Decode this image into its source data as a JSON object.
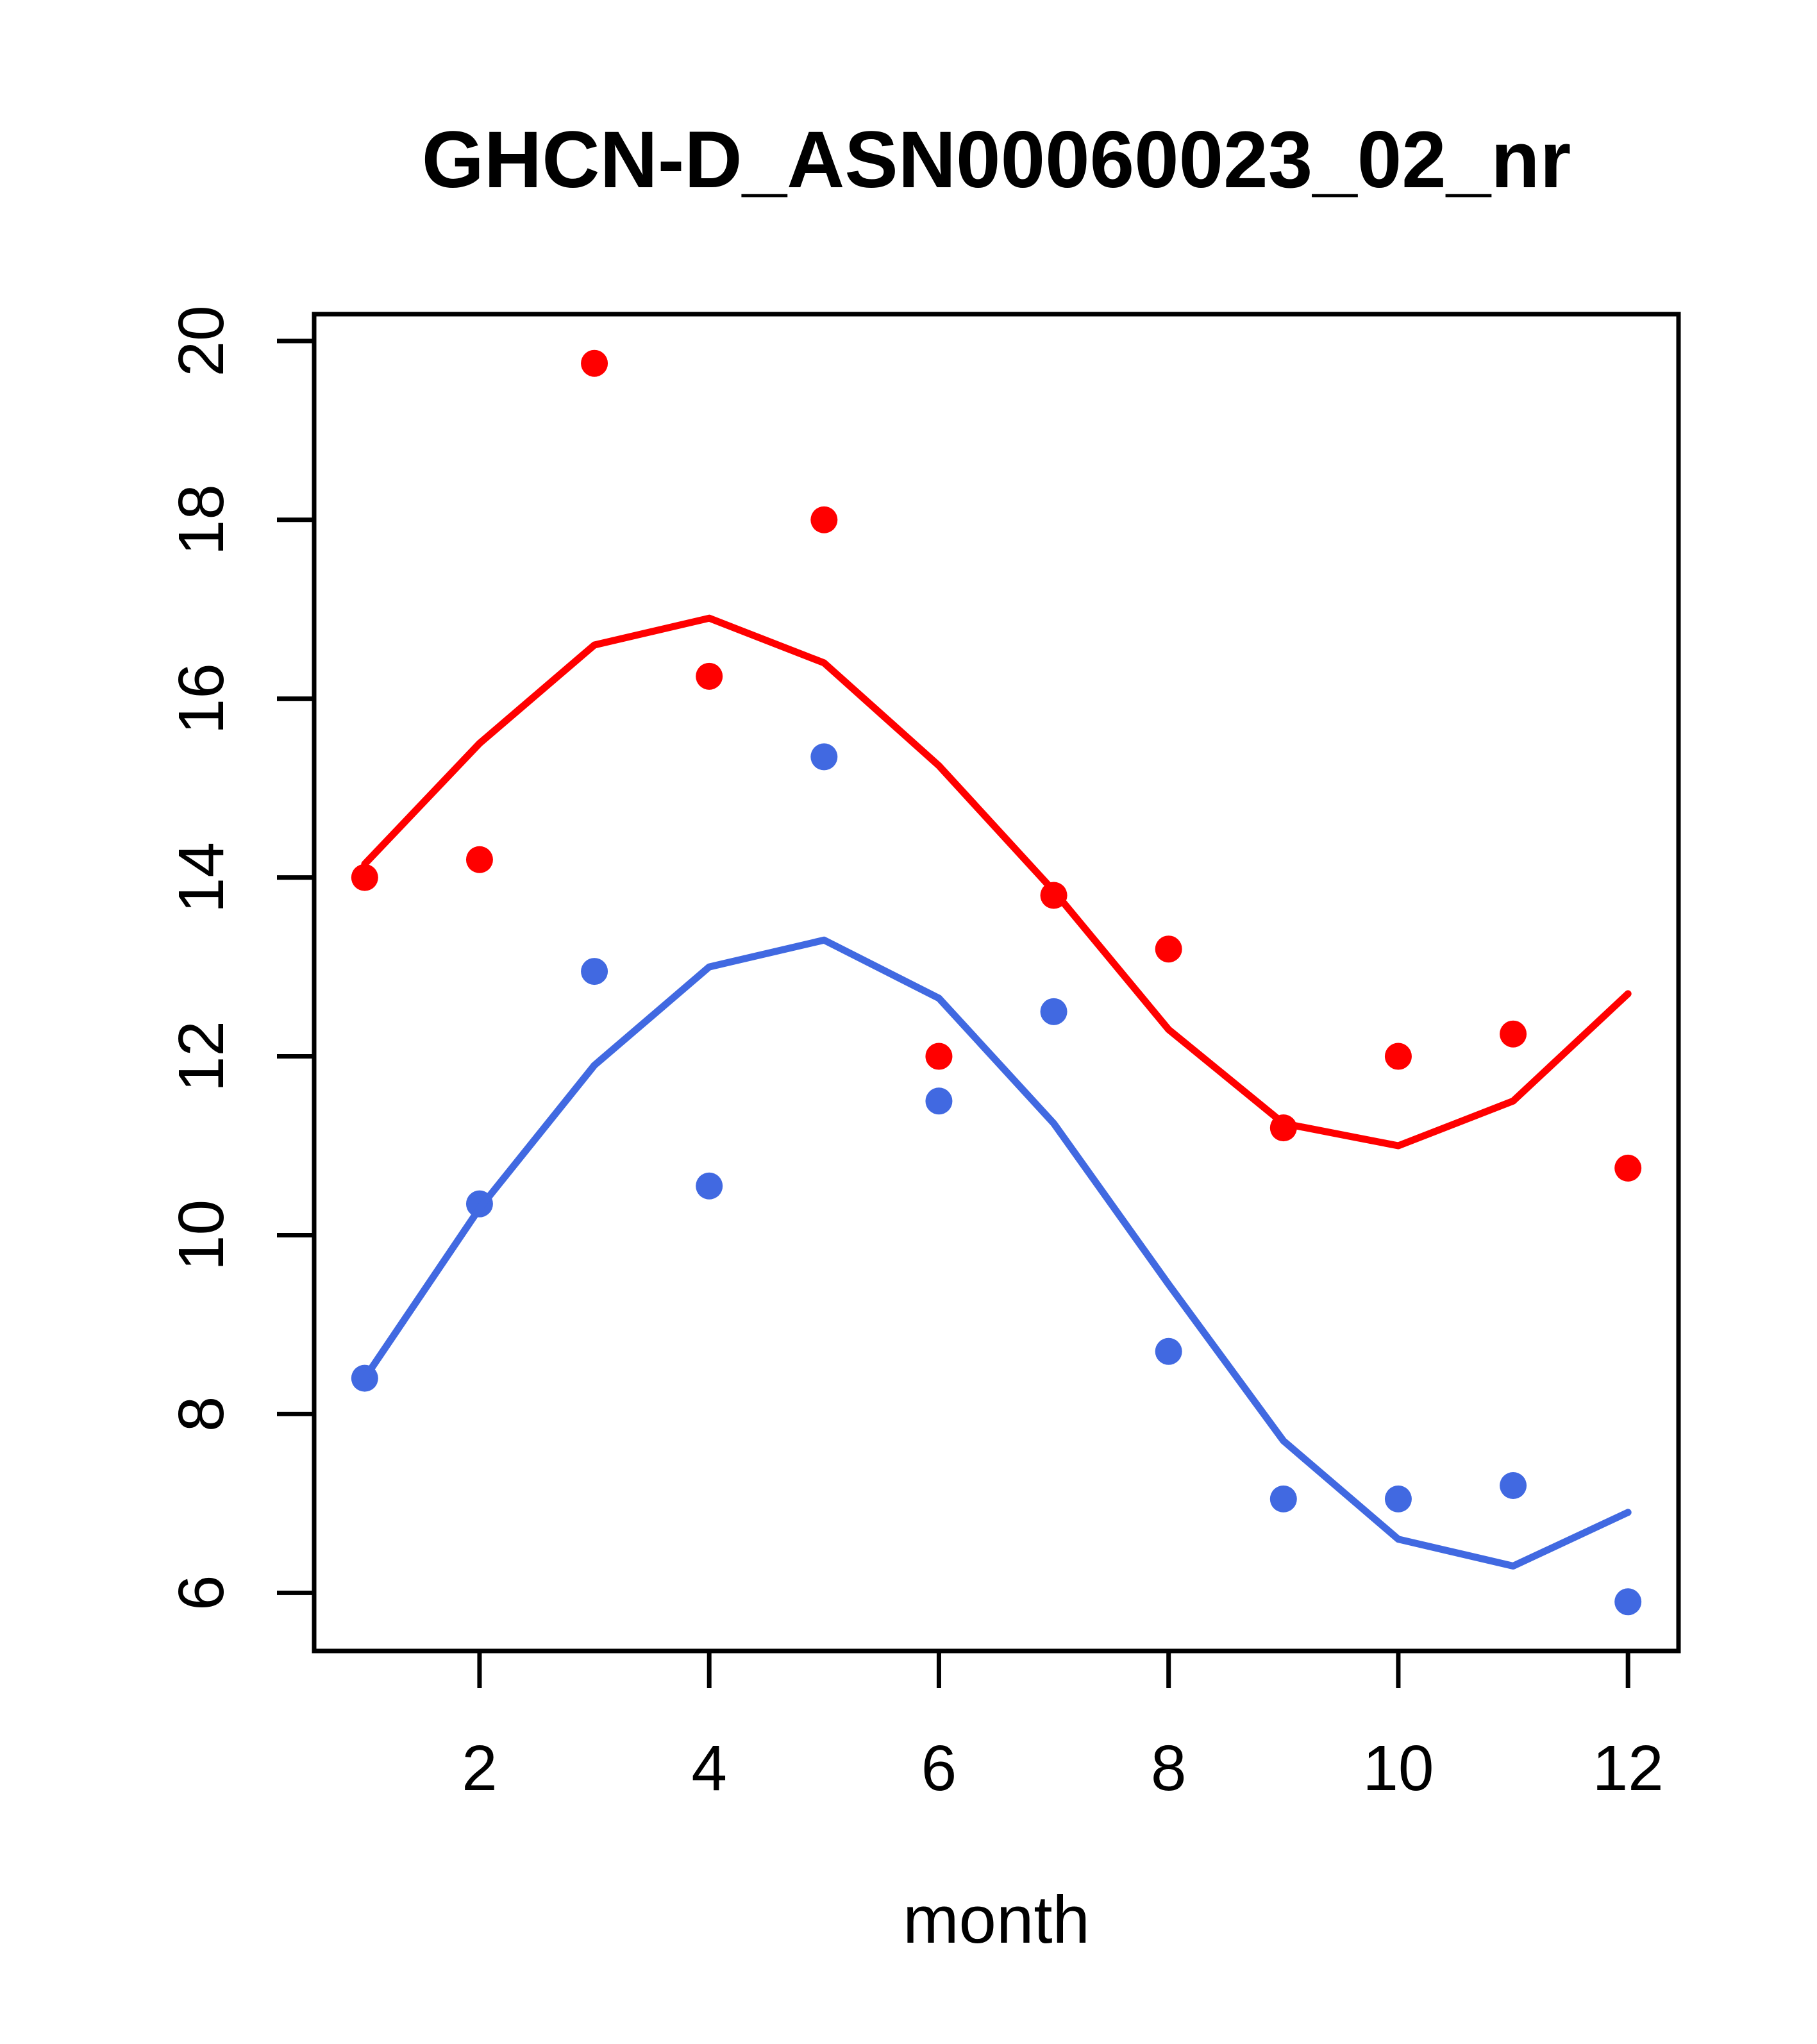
{
  "chart_data": {
    "type": "scatter",
    "title": "GHCN-D_ASN00060023_02_nr",
    "xlabel": "month",
    "ylabel": "",
    "x": [
      1,
      2,
      3,
      4,
      5,
      6,
      7,
      8,
      9,
      10,
      11,
      12
    ],
    "x_ticks": [
      2,
      4,
      6,
      8,
      10,
      12
    ],
    "y_ticks": [
      6,
      8,
      10,
      12,
      14,
      16,
      18,
      20
    ],
    "xlim": [
      0.56,
      12.44
    ],
    "ylim": [
      5.35,
      20.3
    ],
    "grid": false,
    "legend_position": "none",
    "series": [
      {
        "name": "red-points",
        "kind": "points",
        "color": "#ff0000",
        "values": [
          14.0,
          14.2,
          19.75,
          16.25,
          18.0,
          12.0,
          13.8,
          13.2,
          11.2,
          12.0,
          12.25,
          10.75
        ]
      },
      {
        "name": "red-smooth-line",
        "kind": "line",
        "color": "#ff0000",
        "values": [
          14.15,
          15.5,
          16.6,
          16.9,
          16.4,
          15.25,
          13.85,
          12.3,
          11.25,
          11.0,
          11.5,
          12.7
        ]
      },
      {
        "name": "blue-points",
        "kind": "points",
        "color": "#4169e1",
        "values": [
          8.4,
          10.35,
          12.95,
          10.55,
          15.35,
          11.5,
          12.5,
          8.7,
          7.05,
          7.05,
          7.2,
          5.9
        ]
      },
      {
        "name": "blue-smooth-line",
        "kind": "line",
        "color": "#4169e1",
        "values": [
          8.4,
          10.3,
          11.9,
          13.0,
          13.3,
          12.65,
          11.25,
          9.45,
          7.7,
          6.6,
          6.3,
          6.9
        ]
      }
    ],
    "point_radius": 21,
    "line_width": 11,
    "axis_color": "#000000"
  }
}
